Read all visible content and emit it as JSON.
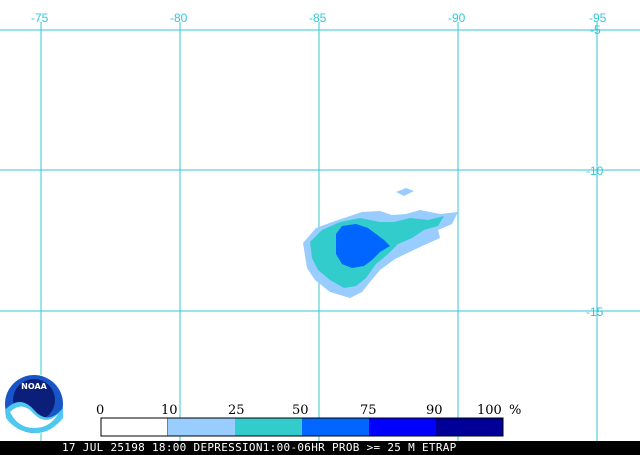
{
  "grid": {
    "lon_labels": [
      "-75",
      "-80",
      "-85",
      "-90",
      "-95"
    ],
    "lat_labels": [
      "-5",
      "-10",
      "-15"
    ],
    "line_color": "#33c8d8"
  },
  "legend": {
    "ticks": [
      "0",
      "10",
      "25",
      "50",
      "75",
      "90",
      "100"
    ],
    "unit": "%",
    "colors": [
      "#ffffff",
      "#99ccff",
      "#33cccc",
      "#0066ff",
      "#0000ff",
      "#000099"
    ]
  },
  "logo": {
    "text": "NOAA"
  },
  "caption": "17 JUL 25198 18:00 DEPRESSION1:00-06HR PROB >= 25 M ETRAP"
}
